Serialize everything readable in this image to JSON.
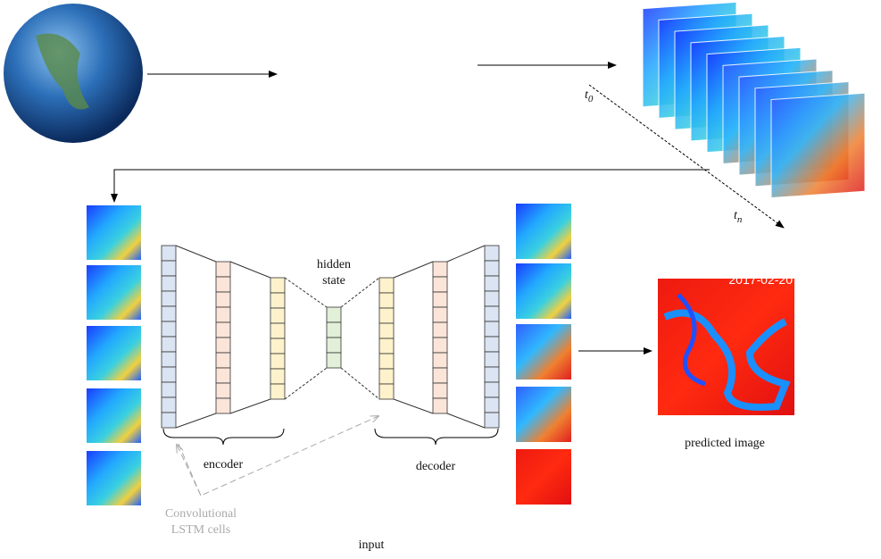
{
  "labels": {
    "time_start": {
      "symbol": "t",
      "subscript": "0"
    },
    "time_end": {
      "symbol": "t",
      "subscript": "n"
    },
    "hidden_state": [
      "hidden",
      "state"
    ],
    "encoder": "encoder",
    "decoder": "decoder",
    "convlstm": [
      "Convolutional",
      "LSTM cells"
    ],
    "input": "input",
    "predicted_image": "predicted image",
    "predicted_date": "2017-02-20"
  }
}
